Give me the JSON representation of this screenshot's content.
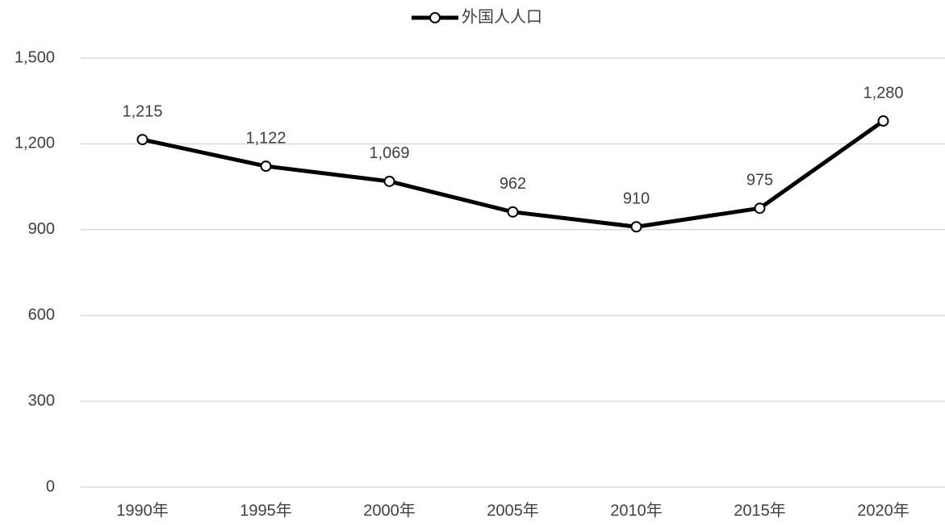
{
  "chart_data": {
    "type": "line",
    "categories": [
      "1990年",
      "1995年",
      "2000年",
      "2005年",
      "2010年",
      "2015年",
      "2020年"
    ],
    "series": [
      {
        "name": "外国人人口",
        "color": "#000000",
        "values": [
          1215,
          1122,
          1069,
          962,
          910,
          975,
          1280
        ],
        "value_labels": [
          "1,215",
          "1,122",
          "1,069",
          "962",
          "910",
          "975",
          "1,280"
        ]
      }
    ],
    "ylim": [
      0,
      1500
    ],
    "yticks": [
      0,
      300,
      600,
      900,
      {
        "value": 1200,
        "label": "1,200"
      },
      {
        "value": 1500,
        "label": "1,500"
      }
    ],
    "grid": true,
    "legend": "top"
  }
}
